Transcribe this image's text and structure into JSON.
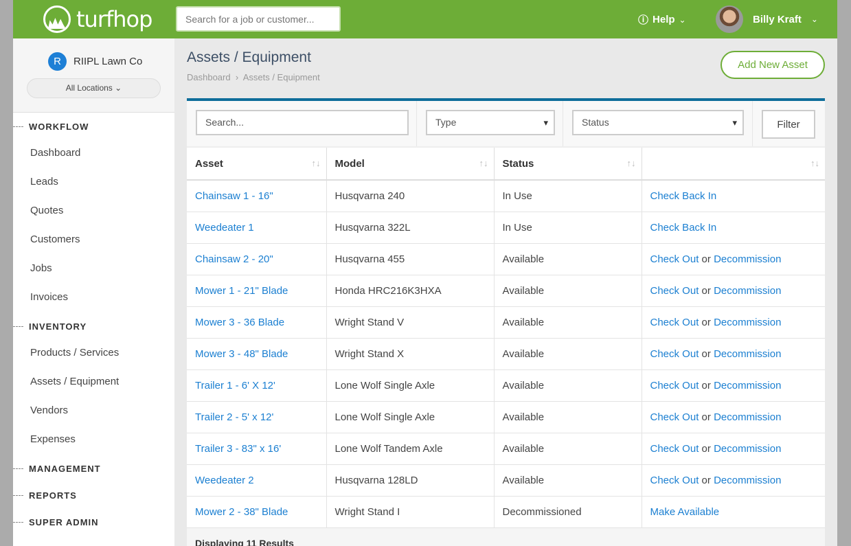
{
  "header": {
    "brand": "turfhop",
    "search_placeholder": "Search for a job or customer...",
    "help": "Help",
    "user": "Billy Kraft"
  },
  "sidebar": {
    "org_initial": "R",
    "org": "RIIPL Lawn Co",
    "location": "All Locations",
    "sections": [
      {
        "label": "WORKFLOW",
        "items": [
          "Dashboard",
          "Leads",
          "Quotes",
          "Customers",
          "Jobs",
          "Invoices"
        ]
      },
      {
        "label": "INVENTORY",
        "items": [
          "Products / Services",
          "Assets / Equipment",
          "Vendors",
          "Expenses"
        ]
      },
      {
        "label": "MANAGEMENT",
        "items": []
      },
      {
        "label": "REPORTS",
        "items": []
      },
      {
        "label": "SUPER ADMIN",
        "items": []
      }
    ]
  },
  "page": {
    "title": "Assets / Equipment",
    "breadcrumb": [
      "Dashboard",
      "Assets / Equipment"
    ],
    "add_button": "Add New Asset"
  },
  "filters": {
    "search_placeholder": "Search...",
    "type": "Type",
    "status": "Status",
    "filter_button": "Filter"
  },
  "table": {
    "columns": [
      "Asset",
      "Model",
      "Status",
      ""
    ],
    "or": "or",
    "rows": [
      {
        "asset": "Chainsaw 1 - 16\"",
        "model": "Husqvarna 240",
        "status": "In Use",
        "actions": [
          "Check Back In"
        ]
      },
      {
        "asset": "Weedeater 1",
        "model": "Husqvarna 322L",
        "status": "In Use",
        "actions": [
          "Check Back In"
        ]
      },
      {
        "asset": "Chainsaw 2 - 20\"",
        "model": "Husqvarna 455",
        "status": "Available",
        "actions": [
          "Check Out",
          "Decommission"
        ]
      },
      {
        "asset": "Mower 1 - 21\" Blade",
        "model": "Honda HRC216K3HXA",
        "status": "Available",
        "actions": [
          "Check Out",
          "Decommission"
        ]
      },
      {
        "asset": "Mower 3 - 36 Blade",
        "model": "Wright Stand V",
        "status": "Available",
        "actions": [
          "Check Out",
          "Decommission"
        ]
      },
      {
        "asset": "Mower 3 - 48\" Blade",
        "model": "Wright Stand X",
        "status": "Available",
        "actions": [
          "Check Out",
          "Decommission"
        ]
      },
      {
        "asset": "Trailer 1 - 6' X 12'",
        "model": "Lone Wolf Single Axle",
        "status": "Available",
        "actions": [
          "Check Out",
          "Decommission"
        ]
      },
      {
        "asset": "Trailer 2 - 5' x 12'",
        "model": "Lone Wolf Single Axle",
        "status": "Available",
        "actions": [
          "Check Out",
          "Decommission"
        ]
      },
      {
        "asset": "Trailer 3 - 83\" x 16'",
        "model": "Lone Wolf Tandem Axle",
        "status": "Available",
        "actions": [
          "Check Out",
          "Decommission"
        ]
      },
      {
        "asset": "Weedeater 2",
        "model": "Husqvarna 128LD",
        "status": "Available",
        "actions": [
          "Check Out",
          "Decommission"
        ]
      },
      {
        "asset": "Mower 2 - 38\" Blade",
        "model": "Wright Stand I",
        "status": "Decommissioned",
        "actions": [
          "Make Available"
        ]
      }
    ],
    "footer": "Displaying 11 Results"
  },
  "colors": {
    "brand_green": "#6dad37",
    "link": "#1b7fd1",
    "card_accent": "#0e6d9a"
  }
}
